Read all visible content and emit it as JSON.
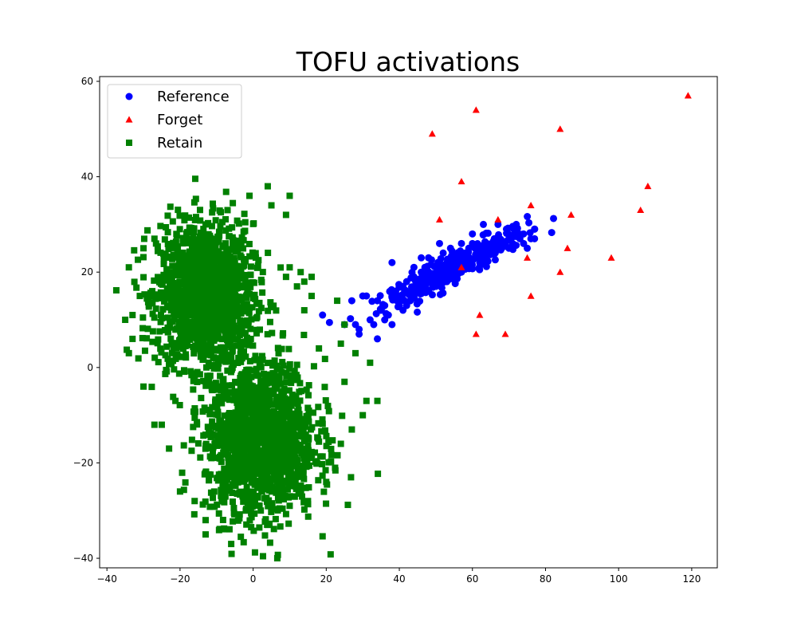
{
  "chart_data": {
    "type": "scatter",
    "title": "TOFU activations",
    "xlabel": "",
    "ylabel": "",
    "xlim": [
      -42,
      127
    ],
    "ylim": [
      -42,
      61
    ],
    "xticks": [
      -40,
      -20,
      0,
      20,
      40,
      60,
      80,
      100,
      120
    ],
    "yticks": [
      -40,
      -20,
      0,
      20,
      40,
      60
    ],
    "grid": false,
    "legend": {
      "position": "top-left"
    },
    "series": [
      {
        "name": "Reference",
        "marker": "circle",
        "color": "#0000ff",
        "cluster": {
          "center": [
            55,
            21
          ],
          "count": 300
        },
        "points": [
          [
            19,
            11
          ],
          [
            25,
            9
          ],
          [
            27,
            14
          ],
          [
            28,
            9
          ],
          [
            29,
            8
          ],
          [
            29,
            7
          ],
          [
            30,
            15
          ],
          [
            31,
            15
          ],
          [
            32,
            10
          ],
          [
            33,
            9
          ],
          [
            34,
            14
          ],
          [
            34,
            6
          ],
          [
            35,
            12
          ],
          [
            36,
            10
          ],
          [
            36,
            13
          ],
          [
            37,
            11
          ],
          [
            38,
            22
          ],
          [
            38,
            15
          ],
          [
            38,
            9
          ],
          [
            39,
            16
          ],
          [
            40,
            13
          ],
          [
            40,
            15
          ],
          [
            41,
            12
          ],
          [
            41,
            17
          ],
          [
            42,
            13
          ],
          [
            42,
            18
          ],
          [
            43,
            14
          ],
          [
            43,
            16
          ],
          [
            44,
            19
          ],
          [
            44,
            21
          ],
          [
            45,
            16
          ],
          [
            45,
            18
          ],
          [
            46,
            23
          ],
          [
            46,
            20
          ],
          [
            46,
            17
          ],
          [
            47,
            21
          ],
          [
            47,
            18
          ],
          [
            48,
            23
          ],
          [
            48,
            16
          ],
          [
            49,
            19
          ],
          [
            50,
            21
          ],
          [
            50,
            17
          ],
          [
            51,
            22
          ],
          [
            51,
            19
          ],
          [
            51,
            26
          ],
          [
            52,
            24
          ],
          [
            53,
            20
          ],
          [
            53,
            18
          ],
          [
            54,
            25
          ],
          [
            54,
            22
          ],
          [
            55,
            21
          ],
          [
            56,
            24
          ],
          [
            56,
            23
          ],
          [
            57,
            26
          ],
          [
            57,
            20
          ],
          [
            58,
            22
          ],
          [
            58,
            24
          ],
          [
            59,
            25
          ],
          [
            60,
            26
          ],
          [
            60,
            28
          ],
          [
            61,
            23
          ],
          [
            62,
            25
          ],
          [
            62,
            22
          ],
          [
            63,
            30
          ],
          [
            63,
            24
          ],
          [
            64,
            26
          ],
          [
            65,
            24
          ],
          [
            66,
            25
          ],
          [
            66,
            27
          ],
          [
            67,
            30
          ],
          [
            68,
            25
          ],
          [
            69,
            26
          ],
          [
            70,
            25
          ],
          [
            70,
            27
          ],
          [
            71,
            26
          ],
          [
            72,
            28
          ],
          [
            72,
            30
          ],
          [
            73,
            27
          ],
          [
            74,
            28
          ],
          [
            74,
            26
          ],
          [
            75,
            25
          ],
          [
            76,
            27
          ],
          [
            77,
            29
          ],
          [
            77,
            27
          ]
        ]
      },
      {
        "name": "Forget",
        "marker": "triangle",
        "color": "#ff0000",
        "points": [
          [
            119,
            57
          ],
          [
            61,
            54
          ],
          [
            84,
            50
          ],
          [
            49,
            49
          ],
          [
            57,
            39
          ],
          [
            108,
            38
          ],
          [
            76,
            34
          ],
          [
            106,
            33
          ],
          [
            87,
            32
          ],
          [
            51,
            31
          ],
          [
            67,
            31
          ],
          [
            86,
            25
          ],
          [
            75,
            23
          ],
          [
            98,
            23
          ],
          [
            57,
            21
          ],
          [
            84,
            20
          ],
          [
            76,
            15
          ],
          [
            62,
            11
          ],
          [
            69,
            7
          ],
          [
            61,
            7
          ]
        ]
      },
      {
        "name": "Retain",
        "marker": "square",
        "color": "#008000",
        "clusters": [
          {
            "center": [
              -13,
              15
            ],
            "count": 1500
          },
          {
            "center": [
              2,
              -15
            ],
            "count": 1500
          }
        ],
        "points": [
          [
            4,
            38
          ],
          [
            10,
            36
          ],
          [
            -1,
            36
          ],
          [
            5,
            34
          ],
          [
            -7,
            33
          ],
          [
            9,
            32
          ],
          [
            -13,
            30
          ],
          [
            -21,
            28
          ],
          [
            -27,
            27
          ],
          [
            -30,
            25
          ],
          [
            -34,
            21
          ],
          [
            -31,
            15
          ],
          [
            -33,
            11
          ],
          [
            -35,
            10
          ],
          [
            -33,
            6
          ],
          [
            -34,
            3
          ],
          [
            -30,
            -4
          ],
          [
            -27,
            -12
          ],
          [
            -25,
            -12
          ],
          [
            -23,
            -17
          ],
          [
            -20,
            -26
          ],
          [
            -16,
            -28
          ],
          [
            -13,
            -32
          ],
          [
            -13,
            -35
          ],
          [
            -6,
            -37
          ],
          [
            -2,
            -30
          ],
          [
            4,
            -33
          ],
          [
            10,
            -29
          ],
          [
            15,
            -28
          ],
          [
            20,
            -24
          ],
          [
            24,
            -16
          ],
          [
            27,
            -13
          ],
          [
            30,
            -10
          ],
          [
            34,
            -7
          ],
          [
            31,
            -7
          ],
          [
            25,
            -3
          ],
          [
            32,
            1
          ],
          [
            28,
            3
          ],
          [
            24,
            5
          ],
          [
            25,
            9
          ],
          [
            23,
            14
          ],
          [
            16,
            15
          ],
          [
            16,
            19
          ],
          [
            14,
            18
          ],
          [
            13,
            20
          ],
          [
            12,
            17
          ],
          [
            10,
            21
          ],
          [
            9,
            19
          ],
          [
            14,
            12
          ],
          [
            18,
            4
          ]
        ]
      }
    ]
  }
}
